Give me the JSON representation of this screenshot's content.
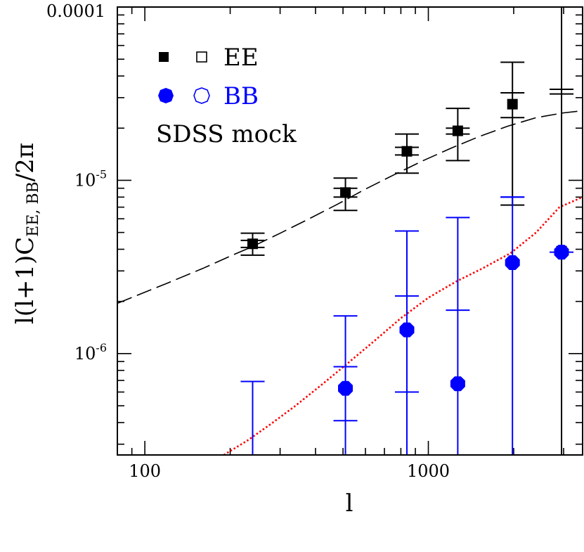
{
  "chart_data": {
    "type": "scatter",
    "title": "",
    "xlabel": "l",
    "ylabel_main": "l(l+1)C",
    "ylabel_sub": "EE, BB",
    "ylabel_tail": "/2π",
    "x_scale": "log",
    "y_scale": "log",
    "xlim": [
      80,
      3500
    ],
    "ylim": [
      2.6e-07,
      0.0001
    ],
    "x_major_ticks": [
      {
        "value": 100,
        "label": "100"
      },
      {
        "value": 1000,
        "label": "1000"
      }
    ],
    "y_major_ticks": [
      {
        "value": 1e-06,
        "base": "10",
        "exp": "-6"
      },
      {
        "value": 1e-05,
        "base": "10",
        "exp": "-5"
      },
      {
        "value": 0.0001,
        "label": "0.0001"
      }
    ],
    "annotation": "SDSS mock",
    "legend": [
      {
        "label": "EE",
        "color": "#000000"
      },
      {
        "label": "BB",
        "color": "#0000ff"
      }
    ],
    "series": [
      {
        "name": "EE",
        "color": "#000000",
        "marker": "square",
        "points": [
          {
            "x": 240,
            "y": 4.3e-06,
            "err_low": 3.7e-06,
            "err_high": 4.95e-06,
            "ticks": [
              4.1e-06,
              4.5e-06
            ]
          },
          {
            "x": 510,
            "y": 8.5e-06,
            "err_low": 6.7e-06,
            "err_high": 1.03e-05,
            "ticks": [
              8e-06,
              9e-06
            ]
          },
          {
            "x": 840,
            "y": 1.47e-05,
            "err_low": 1.1e-05,
            "err_high": 1.85e-05,
            "ticks": [
              1.4e-05,
              1.55e-05
            ]
          },
          {
            "x": 1270,
            "y": 1.93e-05,
            "err_low": 1.3e-05,
            "err_high": 2.6e-05,
            "ticks": [
              1.85e-05,
              2e-05
            ]
          },
          {
            "x": 1980,
            "y": 2.75e-05,
            "err_low": 7.2e-06,
            "err_high": 4.8e-05,
            "ticks": [
              2.3e-05,
              3.2e-05
            ]
          },
          {
            "x": 2950,
            "y": 3.9e-06,
            "err_low": 2.6e-07,
            "err_high": 0.0001,
            "ticks": [
              3.15e-05,
              3.35e-05
            ]
          }
        ]
      },
      {
        "name": "BB",
        "color": "#0000ff",
        "marker": "octagon",
        "points": [
          {
            "x": 240,
            "y": null,
            "err_low": 2.6e-07,
            "err_high": 6.9e-07,
            "ticks": [
              6.9e-07
            ]
          },
          {
            "x": 510,
            "y": 6.3e-07,
            "err_low": 2.6e-07,
            "err_high": 1.65e-06,
            "ticks": [
              4.1e-07,
              8.4e-07
            ]
          },
          {
            "x": 840,
            "y": 1.37e-06,
            "err_low": 2.6e-07,
            "err_high": 5.1e-06,
            "ticks": [
              6e-07,
              2.15e-06
            ]
          },
          {
            "x": 1270,
            "y": 6.7e-07,
            "err_low": 2.6e-07,
            "err_high": 6.1e-06,
            "ticks": [
              1.78e-06
            ]
          },
          {
            "x": 1980,
            "y": 3.35e-06,
            "err_low": 2.6e-07,
            "err_high": 8e-06,
            "ticks": [
              8e-06
            ]
          },
          {
            "x": 2950,
            "y": 3.85e-06,
            "err_low": 3.85e-06,
            "err_high": 3.85e-06,
            "ticks": []
          }
        ]
      }
    ],
    "curves": [
      {
        "name": "EE model",
        "color": "#000000",
        "style": "long-dash",
        "x": [
          80,
          120,
          160,
          200,
          240,
          300,
          380,
          480,
          600,
          760,
          960,
          1200,
          1500,
          1900,
          2400,
          3000,
          3500
        ],
        "y": [
          1.95e-06,
          2.55e-06,
          3.1e-06,
          3.65e-06,
          4.15e-06,
          4.95e-06,
          6e-06,
          7.3e-06,
          8.9e-06,
          1.08e-05,
          1.3e-05,
          1.53e-05,
          1.78e-05,
          2.05e-05,
          2.3e-05,
          2.45e-05,
          2.52e-05
        ]
      },
      {
        "name": "BB model",
        "color": "#ff0000",
        "style": "dotted",
        "x": [
          190,
          230,
          280,
          340,
          420,
          520,
          640,
          800,
          1000,
          1250,
          1550,
          1950,
          2400,
          2900,
          3500
        ],
        "y": [
          2.6e-07,
          3.15e-07,
          3.95e-07,
          5e-07,
          6.6e-07,
          8.8e-07,
          1.17e-06,
          1.6e-06,
          2.1e-06,
          2.6e-06,
          3.1e-06,
          3.8e-06,
          5e-06,
          7e-06,
          8e-06
        ]
      }
    ]
  }
}
